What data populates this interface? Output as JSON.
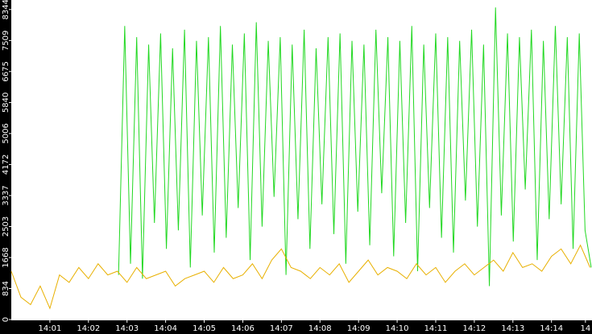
{
  "chart_data": {
    "type": "line",
    "xlim": [
      0,
      15.05
    ],
    "ylim": [
      0,
      8600
    ],
    "xticks": [
      {
        "value": 1,
        "label": "14:01"
      },
      {
        "value": 2,
        "label": "14:02"
      },
      {
        "value": 3,
        "label": "14:03"
      },
      {
        "value": 4,
        "label": "14:04"
      },
      {
        "value": 5,
        "label": "14:05"
      },
      {
        "value": 6,
        "label": "14:06"
      },
      {
        "value": 7,
        "label": "14:07"
      },
      {
        "value": 8,
        "label": "14:08"
      },
      {
        "value": 9,
        "label": "14:09"
      },
      {
        "value": 10,
        "label": "14:10"
      },
      {
        "value": 11,
        "label": "14:11"
      },
      {
        "value": 12,
        "label": "14:12"
      },
      {
        "value": 13,
        "label": "14:13"
      },
      {
        "value": 14,
        "label": "14:14"
      },
      {
        "value": 14.88,
        "label": "14"
      }
    ],
    "yticks": [
      0,
      834,
      1668,
      2503,
      3337,
      4172,
      5006,
      5840,
      6675,
      7509,
      8344
    ],
    "series": [
      {
        "color": "#22d822",
        "x": [
          2.78,
          2.94,
          3.09,
          3.25,
          3.4,
          3.56,
          3.71,
          3.87,
          4.02,
          4.18,
          4.33,
          4.49,
          4.64,
          4.8,
          4.95,
          5.11,
          5.26,
          5.42,
          5.57,
          5.73,
          5.88,
          6.04,
          6.19,
          6.35,
          6.5,
          6.66,
          6.81,
          6.97,
          7.12,
          7.28,
          7.43,
          7.59,
          7.74,
          7.9,
          8.05,
          8.21,
          8.36,
          8.52,
          8.67,
          8.83,
          8.98,
          9.14,
          9.29,
          9.45,
          9.6,
          9.76,
          9.91,
          10.07,
          10.22,
          10.38,
          10.53,
          10.69,
          10.84,
          11.0,
          11.15,
          11.31,
          11.46,
          11.62,
          11.77,
          11.93,
          12.08,
          12.24,
          12.39,
          12.55,
          12.7,
          12.86,
          13.01,
          13.17,
          13.32,
          13.48,
          13.63,
          13.79,
          13.94,
          14.1,
          14.25,
          14.41,
          14.56,
          14.72,
          14.87,
          15.03
        ],
        "values": [
          1200,
          7900,
          1500,
          7600,
          1100,
          7400,
          2600,
          7700,
          1900,
          7300,
          2400,
          7800,
          1400,
          7500,
          2800,
          7600,
          1800,
          7900,
          2200,
          7400,
          3000,
          7700,
          1600,
          8000,
          2500,
          7500,
          3300,
          7600,
          1200,
          7400,
          2700,
          7800,
          1900,
          7300,
          3100,
          7600,
          2300,
          7700,
          1500,
          7500,
          2900,
          7400,
          2000,
          7800,
          3400,
          7600,
          1700,
          7500,
          2600,
          7900,
          1300,
          7400,
          3000,
          7700,
          2200,
          7600,
          1800,
          7500,
          3200,
          7800,
          2500,
          7400,
          900,
          8400,
          2800,
          7700,
          2100,
          7600,
          3500,
          7800,
          1600,
          7500,
          2700,
          7900,
          3100,
          7600,
          1900,
          7700,
          2400,
          1400
        ]
      },
      {
        "color": "#e8b000",
        "x": [
          0,
          0.25,
          0.5,
          0.75,
          1,
          1.25,
          1.5,
          1.75,
          2,
          2.25,
          2.5,
          2.75,
          3,
          3.25,
          3.5,
          3.75,
          4,
          4.25,
          4.5,
          4.75,
          5,
          5.25,
          5.5,
          5.75,
          6,
          6.25,
          6.5,
          6.75,
          7,
          7.25,
          7.5,
          7.75,
          8,
          8.25,
          8.5,
          8.75,
          9,
          9.25,
          9.5,
          9.75,
          10,
          10.25,
          10.5,
          10.75,
          11,
          11.25,
          11.5,
          11.75,
          12,
          12.25,
          12.5,
          12.75,
          13,
          13.25,
          13.5,
          13.75,
          14,
          14.25,
          14.5,
          14.75,
          15
        ],
        "values": [
          1300,
          600,
          400,
          900,
          300,
          1200,
          1000,
          1400,
          1100,
          1500,
          1200,
          1300,
          1000,
          1400,
          1100,
          1200,
          1300,
          900,
          1100,
          1200,
          1300,
          1000,
          1400,
          1100,
          1200,
          1500,
          1100,
          1600,
          1900,
          1400,
          1300,
          1100,
          1400,
          1200,
          1500,
          1000,
          1300,
          1600,
          1200,
          1400,
          1300,
          1100,
          1500,
          1200,
          1400,
          1000,
          1300,
          1500,
          1200,
          1400,
          1600,
          1300,
          1800,
          1400,
          1500,
          1300,
          1700,
          1900,
          1500,
          2000,
          1400
        ]
      }
    ]
  }
}
